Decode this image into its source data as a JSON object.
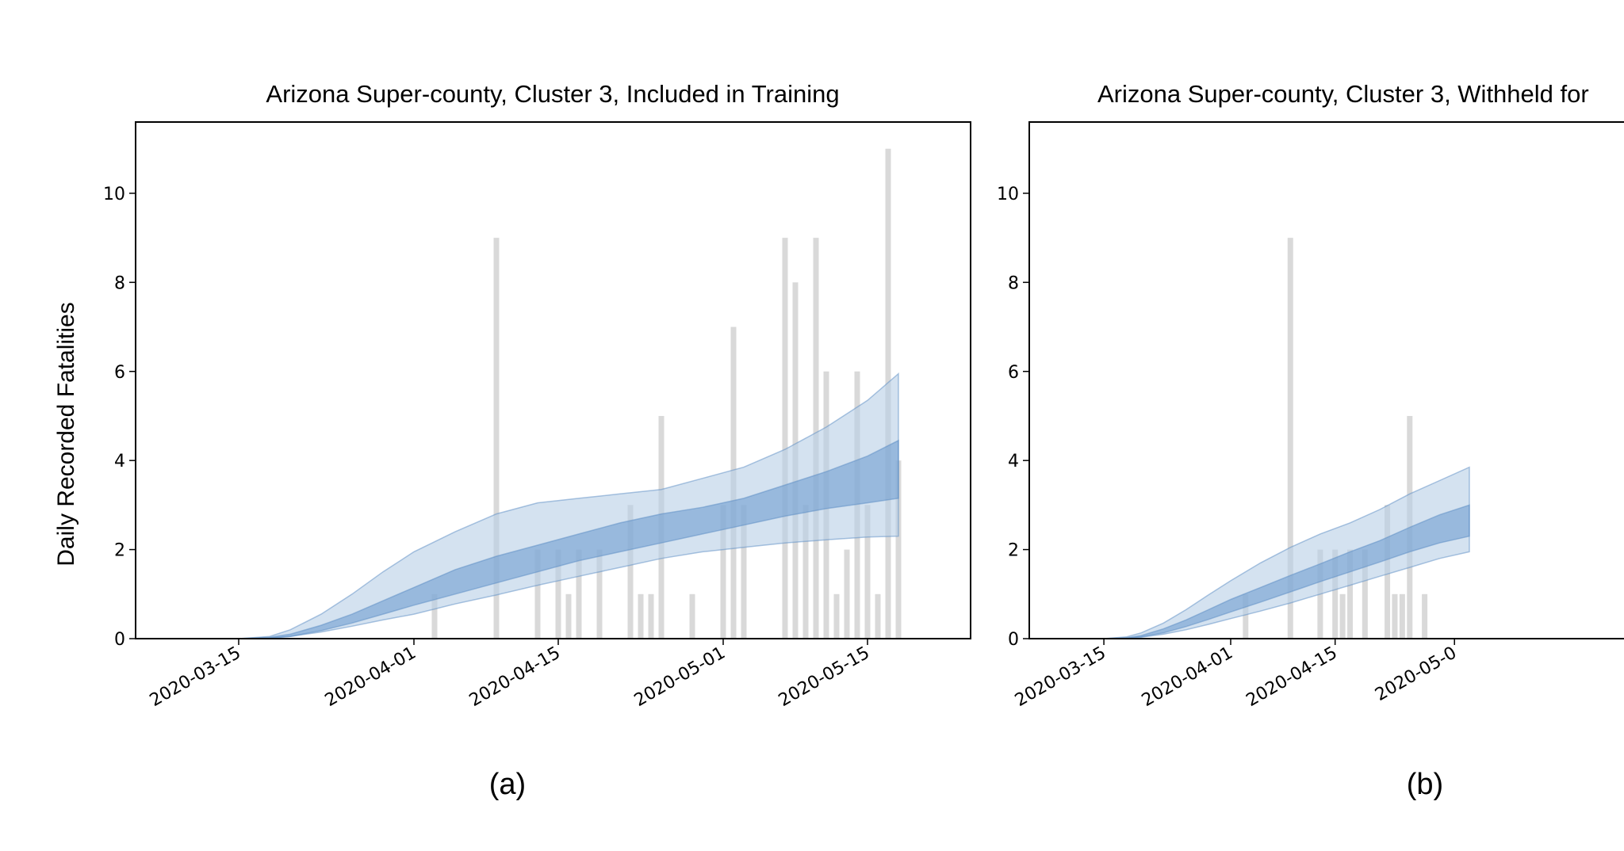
{
  "colors": {
    "bar": "#d9d9d9",
    "band_outer": "#b8cfe6",
    "band_inner": "#6f9fd0",
    "band_inner_edge": "#5a8cc4",
    "axis": "#000000"
  },
  "chart_data": [
    {
      "type": "area",
      "panel_label": "(a)",
      "title": "Arizona Super-county, Cluster 3, Included in Training",
      "xlabel": "",
      "ylabel": "Daily Recorded Fatalities",
      "xlim": [
        "2020-03-05",
        "2020-05-25"
      ],
      "ylim": [
        0,
        11.6
      ],
      "yticks": [
        0,
        2,
        4,
        6,
        8,
        10
      ],
      "xticks": [
        "2020-03-15",
        "2020-04-01",
        "2020-04-15",
        "2020-05-01",
        "2020-05-15"
      ],
      "grid": false,
      "bars": {
        "x": [
          "2020-04-03",
          "2020-04-09",
          "2020-04-13",
          "2020-04-15",
          "2020-04-16",
          "2020-04-17",
          "2020-04-19",
          "2020-04-22",
          "2020-04-23",
          "2020-04-24",
          "2020-04-25",
          "2020-04-28",
          "2020-05-01",
          "2020-05-02",
          "2020-05-03",
          "2020-05-07",
          "2020-05-08",
          "2020-05-09",
          "2020-05-10",
          "2020-05-11",
          "2020-05-12",
          "2020-05-13",
          "2020-05-14",
          "2020-05-15",
          "2020-05-16",
          "2020-05-17",
          "2020-05-18"
        ],
        "values": [
          1,
          9,
          2,
          2,
          1,
          2,
          2,
          3,
          1,
          1,
          5,
          1,
          3,
          7,
          3,
          9,
          8,
          3,
          9,
          6,
          1,
          2,
          6,
          3,
          1,
          11,
          4
        ]
      },
      "band_outer": {
        "x": [
          "2020-03-15",
          "2020-03-18",
          "2020-03-20",
          "2020-03-23",
          "2020-03-26",
          "2020-03-29",
          "2020-04-01",
          "2020-04-05",
          "2020-04-09",
          "2020-04-13",
          "2020-04-17",
          "2020-04-21",
          "2020-04-25",
          "2020-04-29",
          "2020-05-03",
          "2020-05-07",
          "2020-05-11",
          "2020-05-15",
          "2020-05-18"
        ],
        "upper": [
          0,
          0.05,
          0.2,
          0.55,
          1.0,
          1.5,
          1.95,
          2.4,
          2.8,
          3.05,
          3.15,
          3.25,
          3.35,
          3.6,
          3.85,
          4.25,
          4.75,
          5.35,
          5.95
        ],
        "lower": [
          0,
          0.01,
          0.05,
          0.15,
          0.28,
          0.42,
          0.55,
          0.78,
          0.98,
          1.2,
          1.4,
          1.6,
          1.8,
          1.95,
          2.05,
          2.15,
          2.22,
          2.28,
          2.3
        ]
      },
      "band_inner": {
        "x": [
          "2020-03-15",
          "2020-03-18",
          "2020-03-20",
          "2020-03-23",
          "2020-03-26",
          "2020-03-29",
          "2020-04-01",
          "2020-04-05",
          "2020-04-09",
          "2020-04-13",
          "2020-04-17",
          "2020-04-21",
          "2020-04-25",
          "2020-04-29",
          "2020-05-03",
          "2020-05-07",
          "2020-05-11",
          "2020-05-15",
          "2020-05-18"
        ],
        "upper": [
          0,
          0.03,
          0.1,
          0.3,
          0.55,
          0.85,
          1.15,
          1.55,
          1.85,
          2.1,
          2.35,
          2.6,
          2.8,
          2.95,
          3.15,
          3.45,
          3.75,
          4.1,
          4.45
        ],
        "lower": [
          0,
          0.01,
          0.05,
          0.18,
          0.35,
          0.55,
          0.75,
          1.0,
          1.25,
          1.5,
          1.75,
          1.95,
          2.15,
          2.35,
          2.55,
          2.75,
          2.92,
          3.05,
          3.15
        ]
      }
    },
    {
      "type": "area",
      "panel_label": "(b)",
      "title": "Arizona Super-county, Cluster 3, Withheld for",
      "xlabel": "",
      "ylabel": "",
      "xlim": [
        "2020-03-05",
        "2020-05-25"
      ],
      "ylim": [
        0,
        11.6
      ],
      "yticks": [
        0,
        2,
        4,
        6,
        8,
        10
      ],
      "xticks": [
        "2020-03-15",
        "2020-04-01",
        "2020-04-15",
        "2020-05-01"
      ],
      "xtick_labels": [
        "2020-03-15",
        "2020-04-01",
        "2020-04-15",
        "2020-05-0"
      ],
      "grid": false,
      "bars": {
        "x": [
          "2020-04-03",
          "2020-04-09",
          "2020-04-13",
          "2020-04-15",
          "2020-04-16",
          "2020-04-17",
          "2020-04-19",
          "2020-04-22",
          "2020-04-23",
          "2020-04-24",
          "2020-04-25",
          "2020-04-27"
        ],
        "values": [
          1,
          9,
          2,
          2,
          1,
          2,
          2,
          3,
          1,
          1,
          5,
          1
        ]
      },
      "band_outer": {
        "x": [
          "2020-03-15",
          "2020-03-18",
          "2020-03-20",
          "2020-03-23",
          "2020-03-26",
          "2020-03-29",
          "2020-04-01",
          "2020-04-05",
          "2020-04-09",
          "2020-04-13",
          "2020-04-17",
          "2020-04-21",
          "2020-04-25",
          "2020-04-29",
          "2020-05-03"
        ],
        "upper": [
          0,
          0.04,
          0.13,
          0.35,
          0.65,
          0.98,
          1.3,
          1.7,
          2.05,
          2.35,
          2.6,
          2.9,
          3.25,
          3.55,
          3.85
        ],
        "lower": [
          0,
          0.01,
          0.03,
          0.1,
          0.2,
          0.32,
          0.45,
          0.62,
          0.8,
          1.0,
          1.2,
          1.4,
          1.6,
          1.8,
          1.95
        ]
      },
      "band_inner": {
        "x": [
          "2020-03-15",
          "2020-03-18",
          "2020-03-20",
          "2020-03-23",
          "2020-03-26",
          "2020-03-29",
          "2020-04-01",
          "2020-04-05",
          "2020-04-09",
          "2020-04-13",
          "2020-04-17",
          "2020-04-21",
          "2020-04-25",
          "2020-04-29",
          "2020-05-03"
        ],
        "upper": [
          0,
          0.02,
          0.07,
          0.22,
          0.42,
          0.65,
          0.88,
          1.15,
          1.42,
          1.68,
          1.95,
          2.2,
          2.5,
          2.78,
          3.0
        ],
        "lower": [
          0,
          0.01,
          0.04,
          0.13,
          0.27,
          0.43,
          0.6,
          0.82,
          1.05,
          1.28,
          1.5,
          1.72,
          1.95,
          2.15,
          2.3
        ]
      }
    }
  ]
}
